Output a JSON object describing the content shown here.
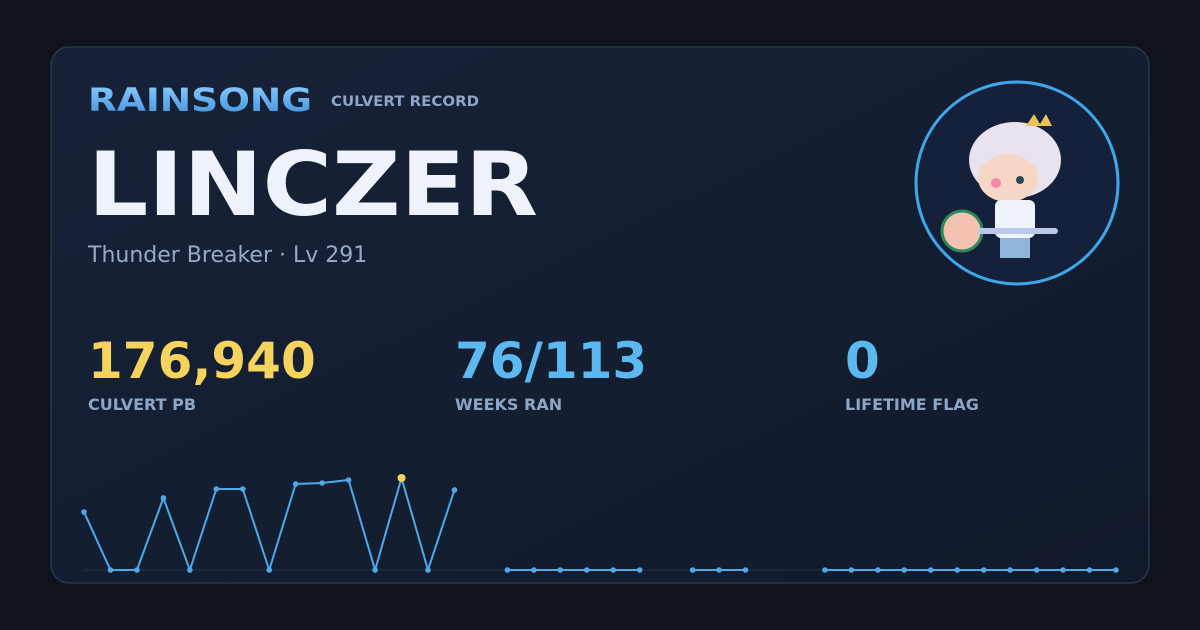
{
  "brand": "RAINSONG",
  "subtitle": "CULVERT RECORD",
  "player": {
    "name": "LINCZER",
    "details": "Thunder Breaker · Lv 291"
  },
  "stats": [
    {
      "value": "176,940",
      "label": "CULVERT PB",
      "color": "#f6d35c"
    },
    {
      "value": "76/113",
      "label": "WEEKS RAN",
      "color": "#5cb8f0"
    },
    {
      "value": "0",
      "label": "LIFETIME FLAG",
      "color": "#5cb8f0"
    }
  ],
  "chart_data": {
    "type": "line",
    "color": "#4ea9ea",
    "highlight_color": "#f6d35c",
    "values": [
      111500,
      0,
      0,
      138500,
      0,
      155800,
      155800,
      0,
      165400,
      167300,
      173100,
      0,
      176940,
      0,
      153900,
      null,
      0,
      0,
      0,
      0,
      0,
      0,
      null,
      0,
      0,
      0,
      null,
      null,
      0,
      0,
      0,
      0,
      0,
      0,
      0,
      0,
      0,
      0,
      0,
      0
    ],
    "ylim": [
      0,
      176940
    ]
  }
}
